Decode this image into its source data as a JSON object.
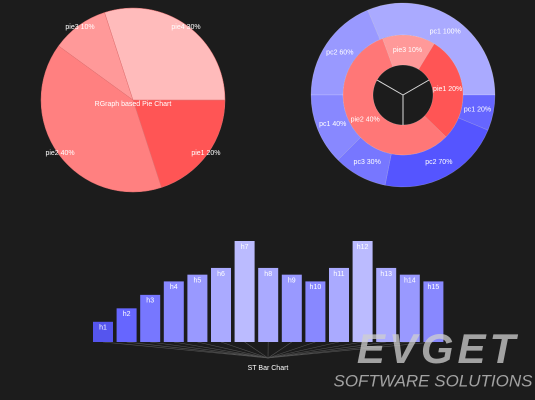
{
  "chart_data": [
    {
      "type": "pie",
      "title": "RGraph based Pie Chart",
      "labels": [
        "pie1 20%",
        "pie2 40%",
        "pie3 10%",
        "pie4 30%"
      ],
      "values": [
        20,
        40,
        10,
        30
      ],
      "colors": [
        "#ff5555",
        "#ff8080",
        "#ff9999",
        "#ffbbbb"
      ]
    },
    {
      "type": "donut",
      "rings": [
        {
          "labels": [
            "pc2 60%",
            "pc1 100%",
            "pc1 20%",
            "pc2 70%",
            "pc3 30%",
            "pc1 40%"
          ],
          "values": [
            60,
            100,
            20,
            70,
            30,
            40
          ],
          "colors": [
            "#9999ff",
            "#aaaaff",
            "#6666ff",
            "#5555ff",
            "#7777ff",
            "#8888ff"
          ]
        },
        {
          "labels": [
            "pie3 10%",
            "pie1 20%",
            "pie2 40%"
          ],
          "values": [
            10,
            20,
            40
          ],
          "colors": [
            "#ff9999",
            "#ff5555",
            "#ff7777"
          ]
        }
      ]
    },
    {
      "type": "bar",
      "title": "ST Bar Chart",
      "categories": [
        "h1",
        "h2",
        "h3",
        "h4",
        "h5",
        "h6",
        "h7",
        "h8",
        "h9",
        "h10",
        "h11",
        "h12",
        "h13",
        "h14",
        "h15"
      ],
      "values": [
        3,
        5,
        7,
        9,
        10,
        11,
        15,
        11,
        10,
        9,
        11,
        15,
        11,
        10,
        9
      ],
      "colors": [
        "#5555ee",
        "#6666ff",
        "#7777ff",
        "#8888ff",
        "#9999ff",
        "#aaaaff",
        "#bbbbff",
        "#aaaaff",
        "#9999ff",
        "#8888ff",
        "#aaaaff",
        "#bbbbff",
        "#aaaaff",
        "#9999ff",
        "#8888ff"
      ],
      "ylim": [
        0,
        15
      ]
    }
  ],
  "watermark": {
    "title": "EVGET",
    "subtitle": "SOFTWARE SOLUTIONS"
  }
}
